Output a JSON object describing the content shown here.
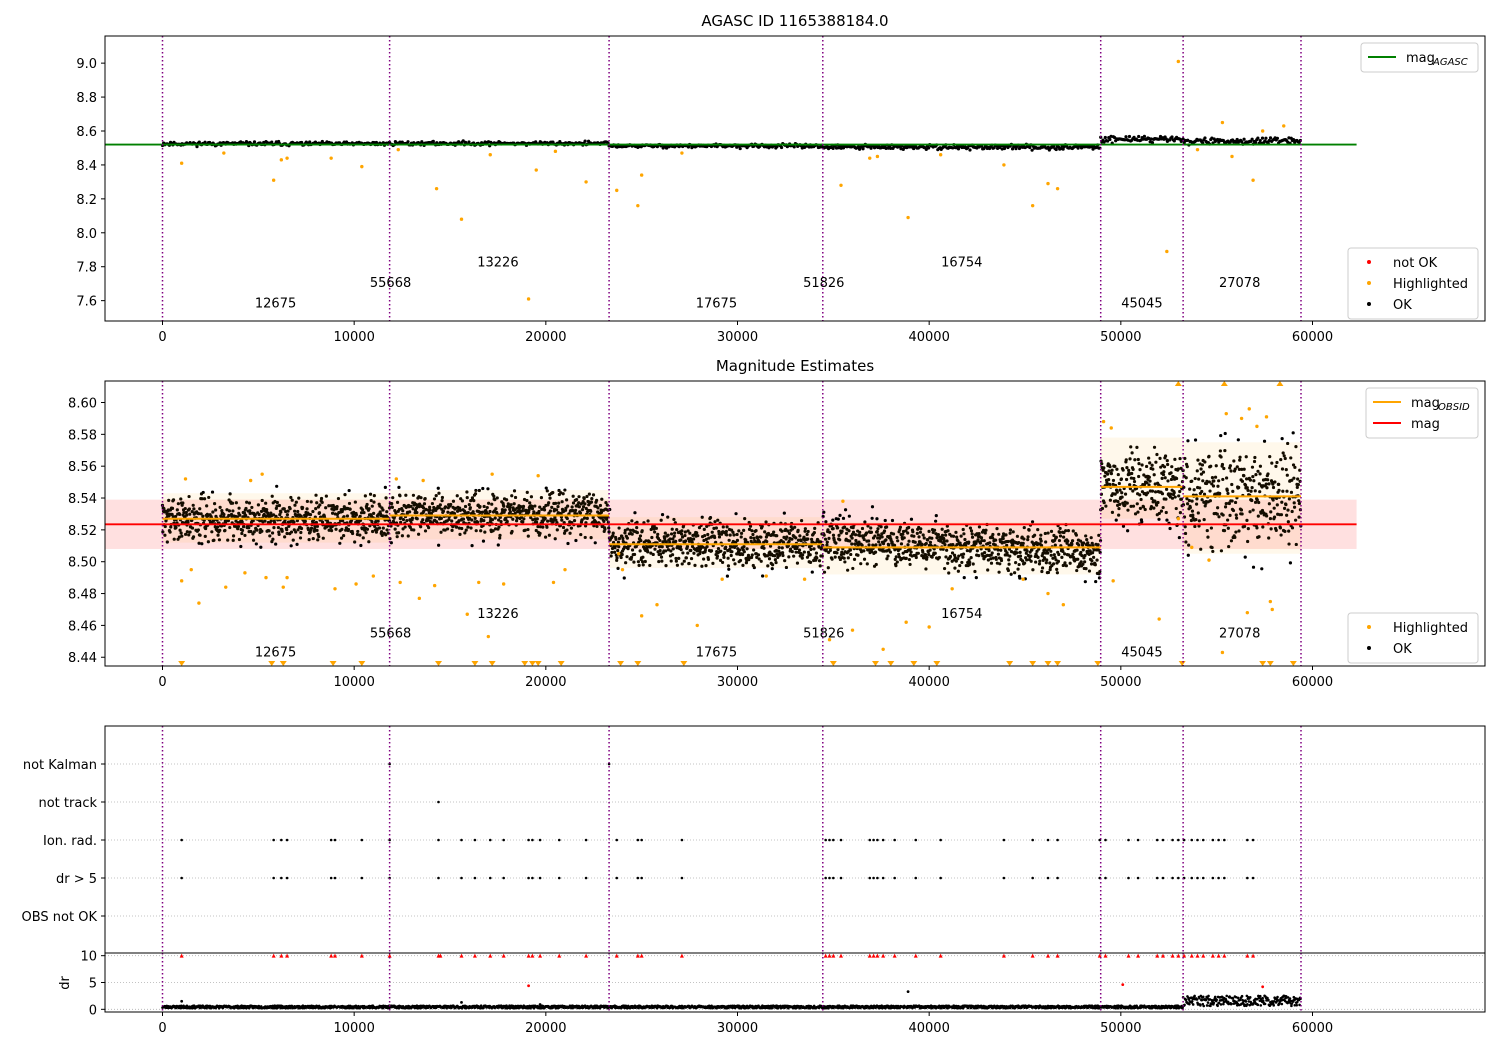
{
  "chart_data": [
    {
      "type": "scatter",
      "title": "AGASC ID 1165388184.0",
      "xlim": [
        -3000,
        69000
      ],
      "ylim": [
        7.48,
        9.16
      ],
      "xticks": [
        0,
        10000,
        20000,
        30000,
        40000,
        50000,
        60000
      ],
      "yticks": [
        "7.6",
        "7.8",
        "8.0",
        "8.2",
        "8.4",
        "8.6",
        "8.8",
        "9.0"
      ],
      "reference_line": {
        "name": "mag$_{AGASC}$",
        "label_main": "mag",
        "label_sub": "AGASC",
        "value": 8.52,
        "x_range": [
          -3000,
          62300
        ],
        "color": "#008000"
      },
      "obs_boundaries": [
        0,
        11850,
        23300,
        34450,
        48950,
        53250,
        59400
      ],
      "obs_labels": [
        {
          "obsid": "12675",
          "x": 5900,
          "y": 7.56
        },
        {
          "obsid": "55668",
          "x": 11900,
          "y": 7.68
        },
        {
          "obsid": "13226",
          "x": 17500,
          "y": 7.8
        },
        {
          "obsid": "17675",
          "x": 28900,
          "y": 7.56
        },
        {
          "obsid": "51826",
          "x": 34500,
          "y": 7.68
        },
        {
          "obsid": "16754",
          "x": 41700,
          "y": 7.8
        },
        {
          "obsid": "45045",
          "x": 51100,
          "y": 7.56
        },
        {
          "obsid": "27078",
          "x": 56200,
          "y": 7.68
        }
      ],
      "ok_segments": [
        {
          "x": [
            0,
            11850
          ],
          "y": 8.525,
          "spread": 0.02
        },
        {
          "x": [
            11850,
            23300
          ],
          "y": 8.527,
          "spread": 0.02
        },
        {
          "x": [
            23300,
            34450
          ],
          "y": 8.512,
          "spread": 0.02
        },
        {
          "x": [
            34450,
            48950
          ],
          "y": 8.505,
          "spread": 0.025
        },
        {
          "x": [
            48950,
            53250
          ],
          "y": 8.553,
          "spread": 0.03
        },
        {
          "x": [
            53250,
            59400
          ],
          "y": 8.54,
          "spread": 0.03
        }
      ],
      "highlighted": [
        {
          "x": 1000,
          "y": 8.41
        },
        {
          "x": 5800,
          "y": 8.31
        },
        {
          "x": 6200,
          "y": 8.43
        },
        {
          "x": 6500,
          "y": 8.44
        },
        {
          "x": 8800,
          "y": 8.44
        },
        {
          "x": 10400,
          "y": 8.39
        },
        {
          "x": 14300,
          "y": 8.26
        },
        {
          "x": 15600,
          "y": 8.08
        },
        {
          "x": 19100,
          "y": 7.61
        },
        {
          "x": 19500,
          "y": 8.37
        },
        {
          "x": 22100,
          "y": 8.3
        },
        {
          "x": 23700,
          "y": 8.25
        },
        {
          "x": 24800,
          "y": 8.16
        },
        {
          "x": 25000,
          "y": 8.34
        },
        {
          "x": 35400,
          "y": 8.28
        },
        {
          "x": 36900,
          "y": 8.44
        },
        {
          "x": 38900,
          "y": 8.09
        },
        {
          "x": 43900,
          "y": 8.4
        },
        {
          "x": 45400,
          "y": 8.16
        },
        {
          "x": 46200,
          "y": 8.29
        },
        {
          "x": 46700,
          "y": 8.26
        },
        {
          "x": 52400,
          "y": 7.89
        },
        {
          "x": 53000,
          "y": 9.01
        },
        {
          "x": 55300,
          "y": 8.65
        },
        {
          "x": 55800,
          "y": 8.45
        },
        {
          "x": 56900,
          "y": 8.31
        },
        {
          "x": 57400,
          "y": 8.6
        },
        {
          "x": 58500,
          "y": 8.63
        },
        {
          "x": 3200,
          "y": 8.47
        },
        {
          "x": 12300,
          "y": 8.49
        },
        {
          "x": 17100,
          "y": 8.46
        },
        {
          "x": 20500,
          "y": 8.48
        },
        {
          "x": 27100,
          "y": 8.47
        },
        {
          "x": 37300,
          "y": 8.45
        },
        {
          "x": 40600,
          "y": 8.46
        },
        {
          "x": 54000,
          "y": 8.49
        }
      ],
      "legends": [
        {
          "position": "upper right",
          "entries": [
            {
              "label": "mag",
              "sub": "AGASC",
              "marker": "line",
              "color": "#008000"
            }
          ]
        },
        {
          "position": "lower right",
          "entries": [
            {
              "label": "not OK",
              "marker": "dot",
              "color": "#ff0000"
            },
            {
              "label": "Highlighted",
              "marker": "dot",
              "color": "#ffa500"
            },
            {
              "label": "OK",
              "marker": "dot",
              "color": "#000000"
            }
          ]
        }
      ]
    },
    {
      "type": "scatter",
      "title": "Magnitude Estimates",
      "xlim": [
        -3000,
        69000
      ],
      "ylim": [
        8.4345,
        8.6135
      ],
      "xticks": [
        0,
        10000,
        20000,
        30000,
        40000,
        50000,
        60000
      ],
      "yticks": [
        "8.44",
        "8.46",
        "8.48",
        "8.50",
        "8.52",
        "8.54",
        "8.56",
        "8.58",
        "8.60"
      ],
      "mean_line": {
        "name": "mag",
        "value": 8.5235,
        "band": [
          8.508,
          8.539
        ],
        "x_range": [
          -3000,
          62300
        ],
        "color": "#ff0000"
      },
      "obsid_means": [
        {
          "x": [
            0,
            11850
          ],
          "mag": 8.527,
          "min": 8.512,
          "max": 8.543
        },
        {
          "x": [
            11850,
            23300
          ],
          "mag": 8.529,
          "min": 8.514,
          "max": 8.545
        },
        {
          "x": [
            23300,
            34450
          ],
          "mag": 8.511,
          "min": 8.496,
          "max": 8.528
        },
        {
          "x": [
            34450,
            48950
          ],
          "mag": 8.509,
          "min": 8.492,
          "max": 8.525
        },
        {
          "x": [
            48950,
            53250
          ],
          "mag": 8.547,
          "min": 8.527,
          "max": 8.578
        },
        {
          "x": [
            53250,
            59400
          ],
          "mag": 8.541,
          "min": 8.505,
          "max": 8.575
        }
      ],
      "obs_boundaries": [
        0,
        11850,
        23300,
        34450,
        48950,
        53250,
        59400
      ],
      "obs_labels": [
        {
          "obsid": "12675",
          "x": 5900,
          "y": 8.4405
        },
        {
          "obsid": "55668",
          "x": 11900,
          "y": 8.4525
        },
        {
          "obsid": "13226",
          "x": 17500,
          "y": 8.4645
        },
        {
          "obsid": "17675",
          "x": 28900,
          "y": 8.4405
        },
        {
          "obsid": "51826",
          "x": 34500,
          "y": 8.4525
        },
        {
          "obsid": "16754",
          "x": 41700,
          "y": 8.4645
        },
        {
          "obsid": "45045",
          "x": 51100,
          "y": 8.4405
        },
        {
          "obsid": "27078",
          "x": 56200,
          "y": 8.4525
        }
      ],
      "highlighted": [
        {
          "x": 1000,
          "y": 8.488
        },
        {
          "x": 1500,
          "y": 8.495
        },
        {
          "x": 1900,
          "y": 8.474
        },
        {
          "x": 3300,
          "y": 8.484
        },
        {
          "x": 4300,
          "y": 8.493
        },
        {
          "x": 5400,
          "y": 8.49
        },
        {
          "x": 6300,
          "y": 8.484
        },
        {
          "x": 6500,
          "y": 8.49
        },
        {
          "x": 9000,
          "y": 8.483
        },
        {
          "x": 10100,
          "y": 8.486
        },
        {
          "x": 11000,
          "y": 8.491
        },
        {
          "x": 12400,
          "y": 8.487
        },
        {
          "x": 13400,
          "y": 8.477
        },
        {
          "x": 14200,
          "y": 8.485
        },
        {
          "x": 15900,
          "y": 8.467
        },
        {
          "x": 16500,
          "y": 8.487
        },
        {
          "x": 17000,
          "y": 8.453
        },
        {
          "x": 17800,
          "y": 8.486
        },
        {
          "x": 20400,
          "y": 8.487
        },
        {
          "x": 21000,
          "y": 8.495
        },
        {
          "x": 23800,
          "y": 8.505
        },
        {
          "x": 24000,
          "y": 8.495
        },
        {
          "x": 25000,
          "y": 8.466
        },
        {
          "x": 25800,
          "y": 8.473
        },
        {
          "x": 27900,
          "y": 8.46
        },
        {
          "x": 29200,
          "y": 8.489
        },
        {
          "x": 31500,
          "y": 8.491
        },
        {
          "x": 33500,
          "y": 8.489
        },
        {
          "x": 34800,
          "y": 8.451
        },
        {
          "x": 36000,
          "y": 8.457
        },
        {
          "x": 37600,
          "y": 8.445
        },
        {
          "x": 38800,
          "y": 8.462
        },
        {
          "x": 40000,
          "y": 8.459
        },
        {
          "x": 41200,
          "y": 8.483
        },
        {
          "x": 44900,
          "y": 8.489
        },
        {
          "x": 46200,
          "y": 8.48
        },
        {
          "x": 47000,
          "y": 8.473
        },
        {
          "x": 49600,
          "y": 8.488
        },
        {
          "x": 52000,
          "y": 8.464
        },
        {
          "x": 53000,
          "y": 8.527
        },
        {
          "x": 53700,
          "y": 8.509
        },
        {
          "x": 54600,
          "y": 8.501
        },
        {
          "x": 55300,
          "y": 8.443
        },
        {
          "x": 56600,
          "y": 8.468
        },
        {
          "x": 57800,
          "y": 8.475
        },
        {
          "x": 57900,
          "y": 8.47
        },
        {
          "x": 1200,
          "y": 8.552
        },
        {
          "x": 4600,
          "y": 8.551
        },
        {
          "x": 5200,
          "y": 8.555
        },
        {
          "x": 12200,
          "y": 8.552
        },
        {
          "x": 13600,
          "y": 8.551
        },
        {
          "x": 17200,
          "y": 8.555
        },
        {
          "x": 19600,
          "y": 8.554
        },
        {
          "x": 35500,
          "y": 8.538
        },
        {
          "x": 49100,
          "y": 8.588
        },
        {
          "x": 49500,
          "y": 8.584
        },
        {
          "x": 55500,
          "y": 8.593
        },
        {
          "x": 56300,
          "y": 8.59
        },
        {
          "x": 56700,
          "y": 8.596
        },
        {
          "x": 57100,
          "y": 8.585
        },
        {
          "x": 57600,
          "y": 8.591
        }
      ],
      "clipped_high_x": [
        53000,
        55400,
        58300
      ],
      "clipped_low_x": [
        1000,
        5700,
        6300,
        8900,
        10400,
        14400,
        16300,
        17200,
        18900,
        19300,
        19600,
        20800,
        23900,
        24800,
        27200,
        35000,
        37200,
        38000,
        39200,
        40400,
        44200,
        45400,
        46200,
        46700,
        48800,
        53200,
        57400,
        57800,
        59000
      ],
      "legends": [
        {
          "position": "upper right",
          "entries": [
            {
              "label": "mag",
              "sub": "OBSID",
              "marker": "line",
              "color": "#ffa500"
            },
            {
              "label": "mag",
              "marker": "line",
              "color": "#ff0000"
            }
          ]
        },
        {
          "position": "lower right",
          "entries": [
            {
              "label": "Highlighted",
              "marker": "dot",
              "color": "#ffa500"
            },
            {
              "label": "OK",
              "marker": "dot",
              "color": "#000000"
            }
          ]
        }
      ]
    },
    {
      "type": "scatter",
      "title": "",
      "xlim": [
        -3000,
        69000
      ],
      "flag_rows": [
        "not Kalman",
        "not track",
        "Ion. rad.",
        "dr > 5",
        "OBS not OK"
      ],
      "flag_events": {
        "not Kalman": [
          11850,
          23300
        ],
        "not track": [
          14400
        ],
        "Ion. rad.": [
          1000,
          5800,
          6200,
          6500,
          8800,
          9000,
          10400,
          11850,
          14400,
          15600,
          16300,
          17100,
          17800,
          19100,
          19300,
          19700,
          20700,
          22100,
          23700,
          24800,
          25000,
          27100,
          34600,
          34800,
          35000,
          35400,
          36900,
          37100,
          37300,
          37600,
          38200,
          39300,
          40600,
          43900,
          45400,
          46200,
          46700,
          48900,
          49200,
          50400,
          50900,
          51900,
          52200,
          52700,
          53000,
          53300,
          53700,
          54000,
          54300,
          54800,
          55100,
          55400,
          56600,
          56900
        ],
        "dr > 5": [
          1000,
          5800,
          6200,
          6500,
          8800,
          9000,
          10400,
          11850,
          14400,
          15600,
          16300,
          17100,
          17800,
          19100,
          19300,
          19700,
          20700,
          22100,
          23700,
          24800,
          25000,
          27100,
          34600,
          34800,
          35000,
          35400,
          36900,
          37100,
          37300,
          37600,
          38200,
          39300,
          40600,
          43900,
          45400,
          46200,
          46700,
          48900,
          49200,
          50400,
          50900,
          51900,
          52200,
          52700,
          53000,
          53300,
          53700,
          54000,
          54300,
          54800,
          55100,
          55400,
          56600,
          56900
        ],
        "OBS not OK": []
      }
    },
    {
      "type": "scatter",
      "title": "",
      "ylabel": "dr",
      "xlim": [
        -3000,
        69000
      ],
      "ylim": [
        -0.5,
        10.5
      ],
      "xticks": [
        0,
        10000,
        20000,
        30000,
        40000,
        50000,
        60000
      ],
      "yticks": [
        "0",
        "5",
        "10"
      ],
      "baseline": [
        {
          "x": [
            0,
            53250
          ],
          "dr": 0.4
        },
        {
          "x": [
            53250,
            59400
          ],
          "dr": 1.2
        }
      ],
      "capped_at_10_x": [
        1000,
        5800,
        6200,
        6500,
        8800,
        9000,
        10400,
        11850,
        14400,
        14500,
        15600,
        16300,
        17100,
        17800,
        19100,
        19300,
        19700,
        20700,
        22100,
        23700,
        24800,
        25000,
        27100,
        34600,
        34800,
        35000,
        35400,
        36900,
        37100,
        37300,
        37600,
        38200,
        39300,
        40600,
        43900,
        45400,
        46200,
        46700,
        48900,
        49200,
        50400,
        50900,
        51900,
        52200,
        52700,
        53000,
        53300,
        53700,
        54000,
        54300,
        54800,
        55100,
        55400,
        56600,
        56900
      ],
      "red_points": [
        {
          "x": 19100,
          "dr": 4.4
        },
        {
          "x": 50100,
          "dr": 4.6
        },
        {
          "x": 57400,
          "dr": 4.2
        }
      ],
      "black_points": [
        {
          "x": 1000,
          "dr": 1.5
        },
        {
          "x": 15600,
          "dr": 1.3
        },
        {
          "x": 19700,
          "dr": 0.9
        },
        {
          "x": 38900,
          "dr": 3.3
        }
      ]
    }
  ]
}
